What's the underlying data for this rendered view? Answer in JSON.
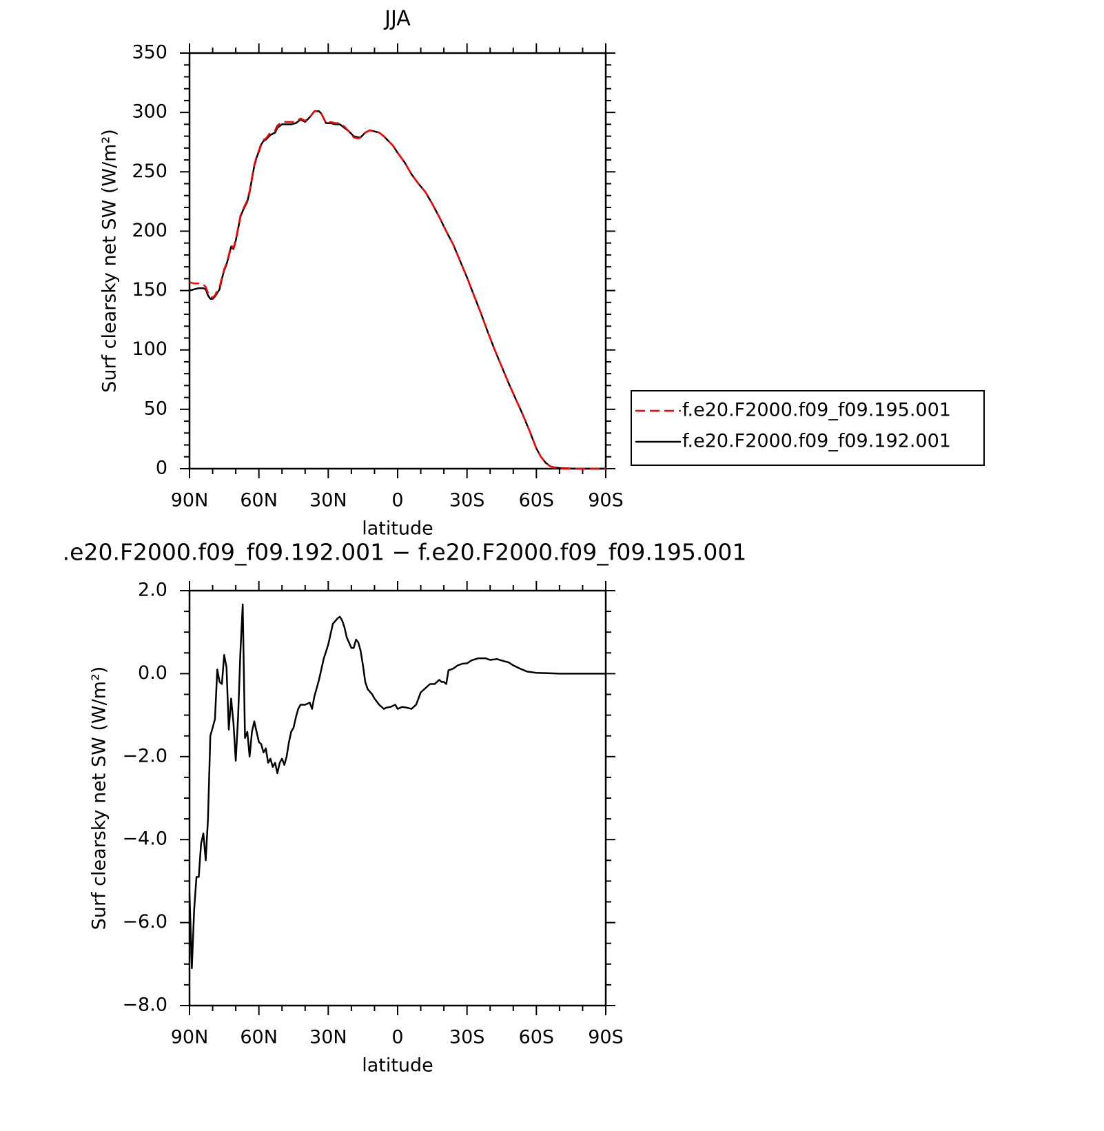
{
  "chart_data": [
    {
      "type": "line",
      "title": "JJA",
      "xlabel": "latitude",
      "ylabel": "Surf clearsky net SW (W/m²)",
      "x": [
        90,
        88,
        86,
        84,
        83,
        82,
        81,
        80,
        79,
        78,
        77,
        76,
        75,
        74,
        73,
        72,
        71,
        70,
        69,
        68,
        67,
        66,
        65,
        64,
        63,
        62,
        61,
        60,
        59,
        58,
        57,
        55,
        53,
        52,
        50,
        48,
        46,
        44,
        42,
        40,
        38,
        36,
        34,
        33,
        31,
        29,
        27,
        25,
        23,
        21,
        19,
        17,
        16,
        14,
        12,
        10,
        8,
        6,
        4,
        2,
        0,
        -3,
        -6,
        -9,
        -12,
        -15,
        -18,
        -21,
        -24,
        -27,
        -30,
        -33,
        -36,
        -39,
        -42,
        -45,
        -48,
        -51,
        -54,
        -57,
        -60,
        -62,
        -64,
        -66,
        -68,
        -70,
        -75,
        -80,
        -85,
        -90
      ],
      "series": [
        {
          "name": "f.e20.F2000.f09_f09.195.001",
          "color": "#ff0000",
          "linestyle": "dashed",
          "values": [
            157,
            156,
            156,
            155,
            153,
            148,
            145,
            144,
            146,
            150,
            153,
            161,
            168,
            173,
            180,
            188,
            186,
            193,
            203,
            213,
            218,
            222,
            226,
            234,
            245,
            256,
            263,
            268,
            274,
            277,
            278,
            283,
            285,
            289,
            292,
            292,
            292,
            292,
            295,
            293,
            296,
            301,
            301,
            299,
            291,
            292,
            291,
            291,
            288,
            284,
            279,
            278,
            279,
            283,
            285,
            284,
            283,
            280,
            276,
            272,
            266,
            258,
            248,
            240,
            233,
            223,
            212,
            200,
            189,
            175,
            161,
            146,
            131,
            115,
            100,
            86,
            72,
            59,
            46,
            32,
            17,
            10,
            5,
            2,
            1,
            0.5,
            0.1,
            0,
            0,
            0
          ]
        },
        {
          "name": "f.e20.F2000.f09_f09.192.001",
          "color": "#000000",
          "linestyle": "solid",
          "values": [
            150,
            151,
            152,
            152,
            151,
            146,
            143,
            143,
            145,
            148,
            151,
            160,
            167,
            172,
            179,
            187,
            185,
            192,
            202,
            212,
            217,
            221,
            225,
            233,
            244,
            255,
            262,
            267,
            273,
            276,
            277,
            281,
            283,
            287,
            290,
            290,
            290,
            291,
            294,
            292,
            296,
            301,
            301,
            299,
            291,
            291,
            290,
            290,
            287,
            284,
            280,
            279,
            279,
            283,
            285,
            284,
            283,
            280,
            276,
            272,
            266,
            258,
            248,
            240,
            233,
            223,
            212,
            200,
            189,
            175,
            161,
            146,
            131,
            115,
            100,
            86,
            72,
            59,
            46,
            32,
            17,
            10,
            5,
            2,
            1,
            0.5,
            0.1,
            0,
            0,
            0
          ]
        }
      ],
      "xlim": [
        90,
        -90
      ],
      "xticks": [
        {
          "value": 90,
          "label": "90N"
        },
        {
          "value": 60,
          "label": "60N"
        },
        {
          "value": 30,
          "label": "30N"
        },
        0,
        {
          "value": -30,
          "label": "30S"
        },
        {
          "value": -60,
          "label": "60S"
        },
        {
          "value": -90,
          "label": "90S"
        }
      ],
      "xminorticks": [
        80,
        70,
        50,
        40,
        20,
        10,
        -10,
        -20,
        -40,
        -50,
        -70,
        -80
      ],
      "ylim": [
        0,
        350
      ],
      "yticks": [
        0,
        50,
        100,
        150,
        200,
        250,
        300,
        350
      ],
      "yminorticks": [
        10,
        20,
        30,
        40,
        60,
        70,
        80,
        90,
        110,
        120,
        130,
        140,
        160,
        170,
        180,
        190,
        210,
        220,
        230,
        240,
        260,
        270,
        280,
        290,
        310,
        320,
        330,
        340
      ],
      "legend": "outside-right"
    },
    {
      "type": "line",
      "title": ".e20.F2000.f09_f09.192.001 − f.e20.F2000.f09_f09.195.001",
      "xlabel": "latitude",
      "ylabel": "Surf clearsky net SW (W/m²)",
      "color": "#000000",
      "x": [
        90,
        89,
        88,
        87,
        86,
        85,
        84,
        83,
        82,
        81,
        80,
        79,
        78,
        77,
        76,
        75,
        74,
        73,
        72,
        71,
        70,
        69,
        68,
        67,
        66,
        65,
        64,
        63,
        62,
        61,
        60,
        59,
        58,
        57,
        56,
        55,
        54,
        53,
        52,
        51,
        50,
        49,
        48,
        47,
        46,
        45,
        44,
        43,
        42,
        40,
        38,
        37,
        36,
        34,
        32,
        30,
        28,
        26,
        25,
        24,
        23,
        22,
        20,
        19,
        18,
        17,
        16,
        15,
        14,
        13,
        11,
        10,
        8,
        6,
        5,
        3,
        1,
        0,
        -2,
        -4,
        -6,
        -8,
        -10,
        -12,
        -14,
        -16,
        -18,
        -19,
        -20,
        -21,
        -22,
        -24,
        -26,
        -28,
        -30,
        -32,
        -35,
        -38,
        -40,
        -43,
        -46,
        -48,
        -50,
        -53,
        -56,
        -60,
        -65,
        -70,
        -80,
        -90
      ],
      "values": [
        -5.3,
        -7.1,
        -5.7,
        -4.9,
        -4.9,
        -4.1,
        -3.85,
        -4.5,
        -3.5,
        -1.5,
        -1.3,
        -1.1,
        0.1,
        -0.2,
        -0.25,
        0.45,
        0.15,
        -1.35,
        -0.6,
        -1.2,
        -2.1,
        -1.05,
        0.5,
        1.67,
        -1.55,
        -1.4,
        -2.0,
        -1.4,
        -1.15,
        -1.4,
        -1.65,
        -1.7,
        -1.9,
        -1.8,
        -2.15,
        -2.05,
        -2.25,
        -2.15,
        -2.4,
        -2.15,
        -2.05,
        -2.2,
        -2.0,
        -1.65,
        -1.4,
        -1.3,
        -1.05,
        -0.85,
        -0.75,
        -0.75,
        -0.7,
        -0.85,
        -0.55,
        -0.15,
        0.35,
        0.7,
        1.2,
        1.33,
        1.37,
        1.28,
        1.12,
        0.87,
        0.62,
        0.62,
        0.82,
        0.75,
        0.55,
        0.2,
        -0.2,
        -0.37,
        -0.5,
        -0.6,
        -0.75,
        -0.85,
        -0.82,
        -0.8,
        -0.75,
        -0.85,
        -0.8,
        -0.82,
        -0.85,
        -0.75,
        -0.45,
        -0.35,
        -0.25,
        -0.25,
        -0.15,
        -0.2,
        -0.2,
        -0.25,
        0.08,
        0.12,
        0.2,
        0.24,
        0.25,
        0.32,
        0.37,
        0.37,
        0.33,
        0.35,
        0.3,
        0.27,
        0.2,
        0.12,
        0.05,
        0.02,
        0.01,
        0,
        0,
        0
      ],
      "xlim": [
        90,
        -90
      ],
      "xticks": [
        {
          "value": 90,
          "label": "90N"
        },
        {
          "value": 60,
          "label": "60N"
        },
        {
          "value": 30,
          "label": "30N"
        },
        0,
        {
          "value": -30,
          "label": "30S"
        },
        {
          "value": -60,
          "label": "60S"
        },
        {
          "value": -90,
          "label": "90S"
        }
      ],
      "xminorticks": [
        80,
        70,
        50,
        40,
        20,
        10,
        -10,
        -20,
        -40,
        -50,
        -70,
        -80
      ],
      "ylim": [
        -8,
        2
      ],
      "yticks": [
        {
          "value": 2,
          "label": "2.0"
        },
        {
          "value": 0,
          "label": "0.0"
        },
        {
          "value": -2,
          "label": "−2.0"
        },
        {
          "value": -4,
          "label": "−4.0"
        },
        {
          "value": -6,
          "label": "−6.0"
        },
        {
          "value": -8,
          "label": "−8.0"
        }
      ],
      "yminorticks": [
        1.5,
        1,
        0.5,
        -0.5,
        -1,
        -1.5,
        -2.5,
        -3,
        -3.5,
        -4.5,
        -5,
        -5.5,
        -6.5,
        -7,
        -7.5
      ]
    }
  ]
}
